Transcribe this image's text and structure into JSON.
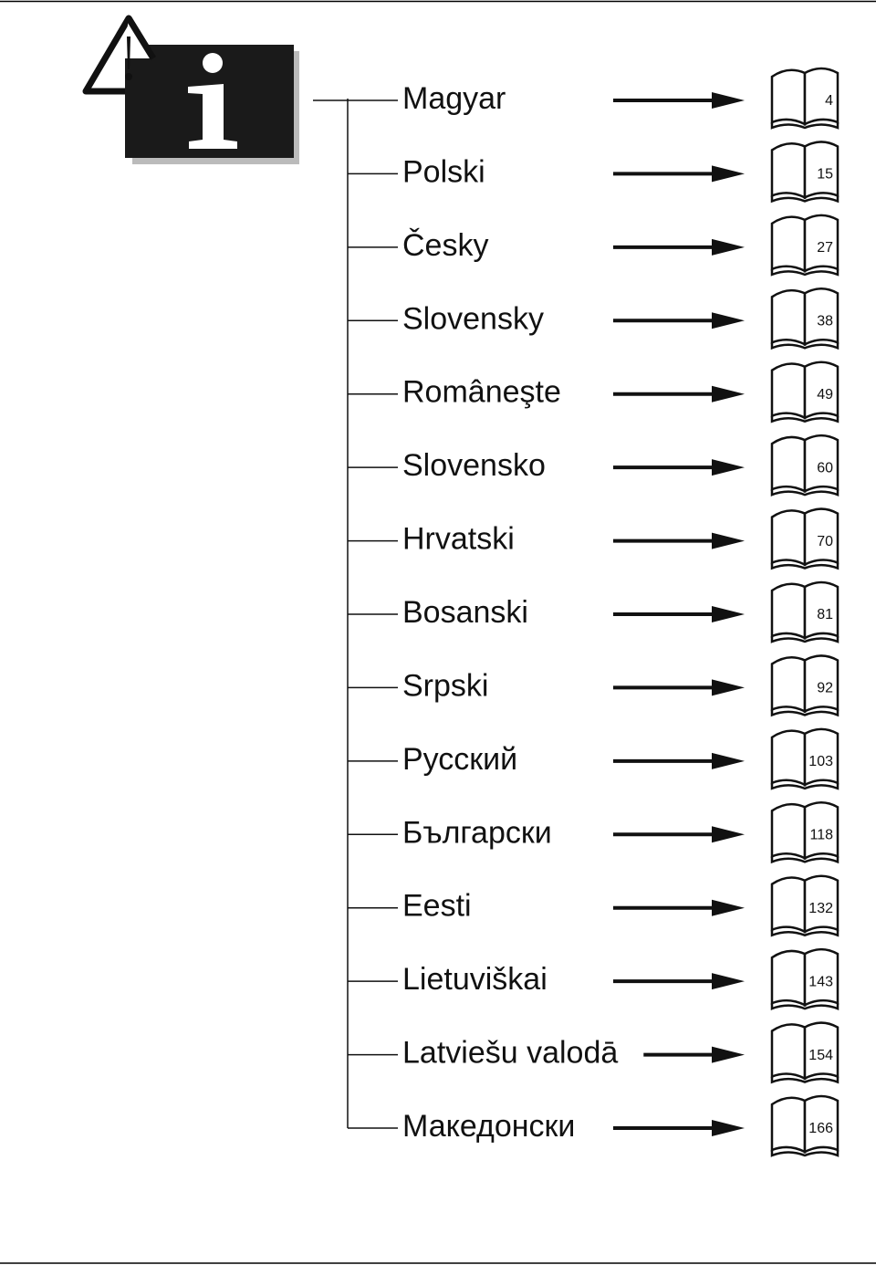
{
  "entries": [
    {
      "language": "Magyar",
      "page": 4
    },
    {
      "language": "Polski",
      "page": 15
    },
    {
      "language": "Česky",
      "page": 27
    },
    {
      "language": "Slovensky",
      "page": 38
    },
    {
      "language": "Româneşte",
      "page": 49
    },
    {
      "language": "Slovensko",
      "page": 60
    },
    {
      "language": "Hrvatski",
      "page": 70
    },
    {
      "language": "Bosanski",
      "page": 81
    },
    {
      "language": "Srpski",
      "page": 92
    },
    {
      "language": "Русский",
      "page": 103
    },
    {
      "language": "Български",
      "page": 118
    },
    {
      "language": "Eesti",
      "page": 132
    },
    {
      "language": "Lietuviškai",
      "page": 143
    },
    {
      "language": "Latviešu valodā",
      "page": 154
    },
    {
      "language": "Македонски",
      "page": 166
    }
  ]
}
